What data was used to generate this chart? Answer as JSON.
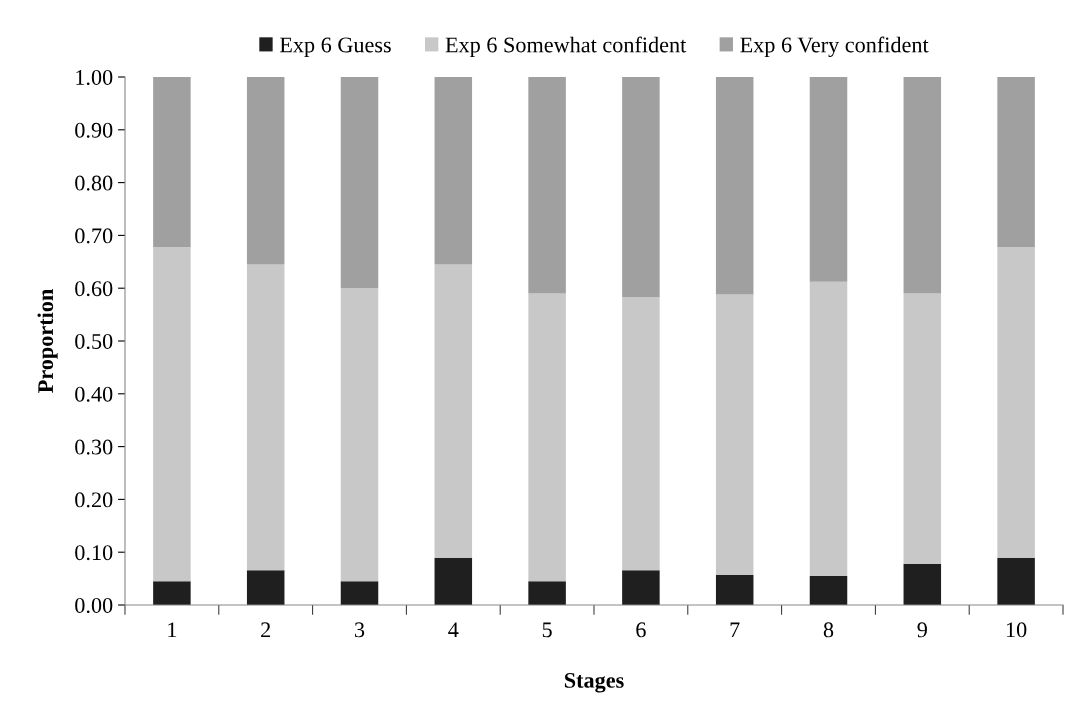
{
  "chart_data": {
    "type": "bar",
    "stacked": true,
    "xlabel": "Stages",
    "ylabel": "Proportion",
    "categories": [
      "1",
      "2",
      "3",
      "4",
      "5",
      "6",
      "7",
      "8",
      "9",
      "10"
    ],
    "series": [
      {
        "name": "Exp 6 Guess",
        "color": "#1f1f1f",
        "values": [
          0.045,
          0.066,
          0.045,
          0.089,
          0.045,
          0.066,
          0.057,
          0.055,
          0.078,
          0.089
        ]
      },
      {
        "name": "Exp 6 Somewhat confident",
        "color": "#c8c8c8",
        "values": [
          0.633,
          0.579,
          0.555,
          0.556,
          0.545,
          0.517,
          0.531,
          0.557,
          0.512,
          0.589
        ]
      },
      {
        "name": "Exp 6 Very confident",
        "color": "#a0a0a0",
        "values": [
          0.322,
          0.355,
          0.4,
          0.355,
          0.41,
          0.417,
          0.412,
          0.388,
          0.41,
          0.322
        ]
      }
    ],
    "ylim": [
      0,
      1
    ],
    "yticks": [
      {
        "value": 0,
        "label": "0.00"
      },
      {
        "value": 0.1,
        "label": "0.10"
      },
      {
        "value": 0.2,
        "label": "0.20"
      },
      {
        "value": 0.3,
        "label": "0.30"
      },
      {
        "value": 0.4,
        "label": "0.40"
      },
      {
        "value": 0.5,
        "label": "0.50"
      },
      {
        "value": 0.6,
        "label": "0.60"
      },
      {
        "value": 0.7,
        "label": "0.70"
      },
      {
        "value": 0.8,
        "label": "0.80"
      },
      {
        "value": 0.9,
        "label": "0.90"
      },
      {
        "value": 1,
        "label": "1.00"
      }
    ],
    "legend": "top",
    "grid": false
  }
}
